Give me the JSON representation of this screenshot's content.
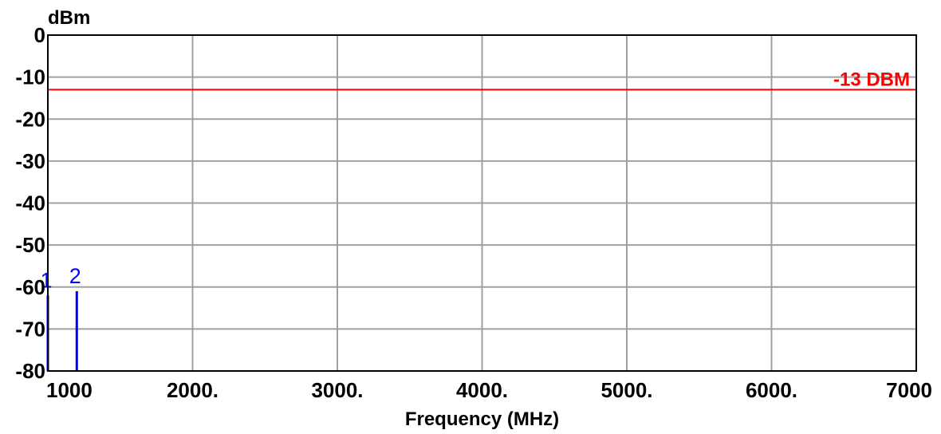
{
  "chart_data": {
    "type": "line",
    "title": "",
    "xlabel": "Frequency (MHz)",
    "ylabel": "dBm",
    "xlim": [
      1000,
      7000
    ],
    "ylim": [
      -80,
      0
    ],
    "x_ticks": [
      {
        "value": 1000,
        "label": "1000"
      },
      {
        "value": 2000,
        "label": "2000."
      },
      {
        "value": 3000,
        "label": "3000."
      },
      {
        "value": 4000,
        "label": "4000."
      },
      {
        "value": 5000,
        "label": "5000."
      },
      {
        "value": 6000,
        "label": "6000."
      },
      {
        "value": 7000,
        "label": "7000"
      }
    ],
    "y_ticks": [
      {
        "value": 0,
        "label": "0"
      },
      {
        "value": -10,
        "label": "-10"
      },
      {
        "value": -20,
        "label": "-20"
      },
      {
        "value": -30,
        "label": "-30"
      },
      {
        "value": -40,
        "label": "-40"
      },
      {
        "value": -50,
        "label": "-50"
      },
      {
        "value": -60,
        "label": "-60"
      },
      {
        "value": -70,
        "label": "-70"
      },
      {
        "value": -80,
        "label": "-80"
      }
    ],
    "grid": true,
    "limit_line": {
      "value": -13,
      "label": "-13 DBM",
      "color": "#ff0000"
    },
    "markers": [
      {
        "label": "1",
        "x": 1000,
        "y": -62,
        "color": "#0000ff"
      },
      {
        "label": "2",
        "x": 1200,
        "y": -61,
        "color": "#0000ff"
      }
    ]
  }
}
